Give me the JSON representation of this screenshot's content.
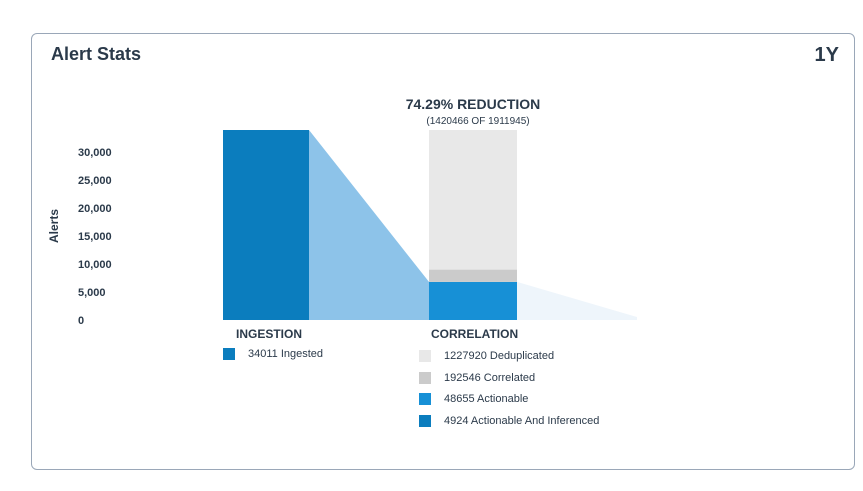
{
  "card": {
    "title": "Alert Stats",
    "range": "1Y"
  },
  "colors": {
    "ingested": "#0b7dbe",
    "flow": "#8dc3e9",
    "flow_faint": "#eef5fb",
    "deduplicated": "#e8e8e8",
    "correlated": "#cbcbcb",
    "actionable": "#1790d6",
    "actionable_inferenced": "#0b7dbe"
  },
  "chart_data": {
    "type": "bar",
    "title": "74.29% REDUCTION",
    "subtitle": "(1420466 OF 1911945)",
    "ylabel": "Alerts",
    "ylim": [
      0,
      30000
    ],
    "yticks": [
      "30,000",
      "25,000",
      "20,000",
      "15,000",
      "10,000",
      "5,000",
      "0"
    ],
    "yticks_values": [
      30000,
      25000,
      20000,
      15000,
      10000,
      5000,
      0
    ],
    "categories": [
      "INGESTION",
      "CORRELATION"
    ],
    "ingestion": {
      "label": "INGESTION",
      "bar_value": 34011,
      "legend": [
        {
          "key": "ingested",
          "text": "34011 Ingested"
        }
      ]
    },
    "correlation": {
      "label": "CORRELATION",
      "stack": [
        {
          "key": "actionable",
          "display_value": 6800
        },
        {
          "key": "correlated",
          "display_value": 2200
        },
        {
          "key": "deduplicated",
          "display_value": 25011
        }
      ],
      "legend": [
        {
          "key": "deduplicated",
          "text": "1227920 Deduplicated"
        },
        {
          "key": "correlated",
          "text": "192546 Correlated"
        },
        {
          "key": "actionable",
          "text": "48655 Actionable"
        },
        {
          "key": "actionable_inferenced",
          "text": "4924 Actionable And Inferenced"
        }
      ]
    }
  }
}
